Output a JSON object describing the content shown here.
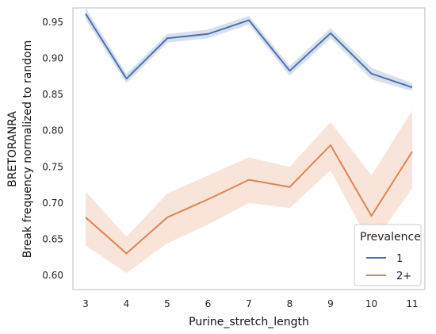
{
  "chart_data": {
    "type": "line",
    "xlabel": "Purine_stretch_length",
    "ylabel_line1": "BRETORANRA",
    "ylabel_line2": "Break frequency normalized to random",
    "x": [
      3,
      4,
      5,
      6,
      7,
      8,
      9,
      10,
      11
    ],
    "xlim": [
      3,
      11
    ],
    "ylim": [
      0.58,
      0.97
    ],
    "yticks": [
      0.6,
      0.65,
      0.7,
      0.75,
      0.8,
      0.85,
      0.9,
      0.95
    ],
    "ytick_labels": [
      "0.60",
      "0.65",
      "0.70",
      "0.75",
      "0.80",
      "0.85",
      "0.90",
      "0.95"
    ],
    "xtick_labels": [
      "3",
      "4",
      "5",
      "6",
      "7",
      "8",
      "9",
      "10",
      "11"
    ],
    "grid": false,
    "legend": {
      "title": "Prevalence",
      "placement": "lower-right"
    },
    "series": [
      {
        "name": "1",
        "color": "#4c72b0",
        "values": [
          0.962,
          0.872,
          0.928,
          0.934,
          0.953,
          0.883,
          0.935,
          0.879,
          0.86
        ],
        "ci_lower": [
          0.954,
          0.866,
          0.922,
          0.928,
          0.947,
          0.876,
          0.928,
          0.871,
          0.855
        ],
        "ci_upper": [
          0.97,
          0.879,
          0.934,
          0.94,
          0.959,
          0.89,
          0.942,
          0.887,
          0.866
        ]
      },
      {
        "name": "2+",
        "color": "#dd8452",
        "values": [
          0.68,
          0.63,
          0.68,
          0.705,
          0.732,
          0.722,
          0.78,
          0.682,
          0.771
        ],
        "ci_lower": [
          0.641,
          0.603,
          0.644,
          0.67,
          0.7,
          0.693,
          0.745,
          0.64,
          0.72
        ],
        "ci_upper": [
          0.716,
          0.653,
          0.713,
          0.738,
          0.763,
          0.75,
          0.812,
          0.738,
          0.828
        ]
      }
    ]
  }
}
